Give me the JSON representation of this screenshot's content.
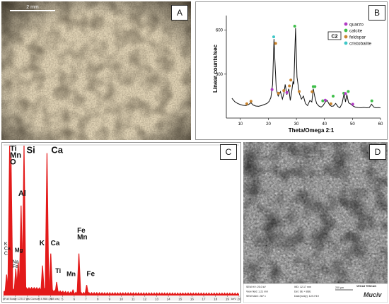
{
  "panels": {
    "a": {
      "letter": "A",
      "scale_bar_label": "2 mm"
    },
    "b": {
      "letter": "B"
    },
    "c": {
      "letter": "C"
    },
    "d": {
      "letter": "D"
    }
  },
  "xrd_chart": {
    "type": "line",
    "sample_label": "C2",
    "xlabel": "Theta/Omega 2:1",
    "ylabel": "Linear counts/sec",
    "xlim": [
      5,
      60
    ],
    "ylim": [
      0,
      700
    ],
    "x_ticks": [
      10,
      20,
      30,
      40,
      50,
      60
    ],
    "y_ticks": [
      300,
      600
    ],
    "legend_position": "top-right",
    "legend": [
      {
        "name": "quarzo",
        "color": "#b13bc4"
      },
      {
        "name": "calcite",
        "color": "#3fbf4a"
      },
      {
        "name": "feldspar",
        "color": "#c9842f"
      },
      {
        "name": "cristobalite",
        "color": "#3fc7c7"
      }
    ],
    "pattern_x": [
      7,
      8,
      9,
      10,
      11,
      12,
      13,
      13.8,
      14.5,
      15.5,
      16.5,
      17.5,
      18.5,
      19.5,
      20.3,
      20.9,
      21.5,
      21.8,
      22.0,
      22.3,
      22.8,
      23.5,
      24.3,
      25.0,
      25.6,
      26.0,
      26.6,
      27.3,
      27.8,
      28.3,
      28.8,
      29.1,
      29.4,
      29.7,
      30.2,
      31.0,
      31.8,
      32.5,
      33.2,
      34.0,
      34.8,
      35.5,
      36.0,
      36.5,
      37.2,
      38.0,
      38.8,
      39.5,
      40.3,
      41.0,
      41.8,
      42.5,
      43.2,
      44.0,
      44.8,
      45.5,
      46.3,
      47.0,
      47.5,
      48.0,
      48.6,
      49.4,
      50.2,
      51.0,
      52.0,
      53.0,
      54.0,
      55.0,
      56.0,
      56.8,
      57.6,
      58.4,
      59.2,
      60
    ],
    "pattern_y": [
      135,
      112,
      100,
      92,
      87,
      85,
      93,
      105,
      90,
      82,
      80,
      85,
      92,
      100,
      115,
      140,
      230,
      420,
      540,
      400,
      200,
      150,
      180,
      130,
      175,
      230,
      160,
      200,
      120,
      180,
      250,
      230,
      430,
      615,
      280,
      170,
      130,
      150,
      100,
      85,
      120,
      110,
      200,
      150,
      100,
      82,
      75,
      85,
      110,
      120,
      90,
      80,
      82,
      100,
      78,
      70,
      100,
      170,
      110,
      160,
      105,
      95,
      82,
      75,
      72,
      70,
      73,
      70,
      72,
      95,
      75,
      70,
      72,
      70
    ],
    "markers": [
      {
        "x": 12.3,
        "y": 88,
        "phase": "feldspar"
      },
      {
        "x": 13.8,
        "y": 105,
        "phase": "feldspar"
      },
      {
        "x": 21.3,
        "y": 185,
        "phase": "quarzo"
      },
      {
        "x": 21.9,
        "y": 545,
        "phase": "cristobalite"
      },
      {
        "x": 22.6,
        "y": 500,
        "phase": "feldspar"
      },
      {
        "x": 23.6,
        "y": 160,
        "phase": "feldspar"
      },
      {
        "x": 25.5,
        "y": 178,
        "phase": "feldspar"
      },
      {
        "x": 26.6,
        "y": 165,
        "phase": "quarzo"
      },
      {
        "x": 27.5,
        "y": 210,
        "phase": "feldspar"
      },
      {
        "x": 28.0,
        "y": 250,
        "phase": "feldspar"
      },
      {
        "x": 29.4,
        "y": 618,
        "phase": "calcite"
      },
      {
        "x": 31.0,
        "y": 172,
        "phase": "feldspar"
      },
      {
        "x": 35.6,
        "y": 170,
        "phase": "feldspar"
      },
      {
        "x": 36.0,
        "y": 205,
        "phase": "calcite"
      },
      {
        "x": 36.6,
        "y": 205,
        "phase": "calcite"
      },
      {
        "x": 39.4,
        "y": 108,
        "phase": "calcite"
      },
      {
        "x": 40.3,
        "y": 112,
        "phase": "quarzo"
      },
      {
        "x": 42.3,
        "y": 88,
        "phase": "feldspar"
      },
      {
        "x": 43.1,
        "y": 140,
        "phase": "calcite"
      },
      {
        "x": 46.9,
        "y": 160,
        "phase": "calcite"
      },
      {
        "x": 47.5,
        "y": 158,
        "phase": "quarzo"
      },
      {
        "x": 48.5,
        "y": 172,
        "phase": "calcite"
      },
      {
        "x": 50.1,
        "y": 85,
        "phase": "quarzo"
      },
      {
        "x": 56.9,
        "y": 108,
        "phase": "calcite"
      }
    ]
  },
  "eds_chart": {
    "type": "bar",
    "footer_text": "Full Scale 17217 cts Cursor: 4.966 (788 cts)",
    "xlim": [
      0,
      20
    ],
    "x_tick_labels": [
      "0",
      "1",
      "2",
      "3",
      "4",
      "5",
      "6",
      "7",
      "8",
      "9",
      "10",
      "11",
      "12",
      "13",
      "14",
      "15",
      "16",
      "17",
      "18",
      "19",
      "20"
    ],
    "axis_unit": "keV",
    "peaks": [
      {
        "x": 0.26,
        "h": 0.14
      },
      {
        "x": 0.39,
        "h": 0.1
      },
      {
        "x": 0.52,
        "h": 1.0
      },
      {
        "x": 0.63,
        "h": 0.95
      },
      {
        "x": 1.04,
        "h": 0.18
      },
      {
        "x": 1.25,
        "h": 0.22
      },
      {
        "x": 1.49,
        "h": 0.6
      },
      {
        "x": 1.74,
        "h": 1.0
      },
      {
        "x": 3.31,
        "h": 0.2
      },
      {
        "x": 3.69,
        "h": 0.95
      },
      {
        "x": 4.01,
        "h": 0.28
      },
      {
        "x": 4.51,
        "h": 0.09
      },
      {
        "x": 5.9,
        "h": 0.04
      },
      {
        "x": 6.4,
        "h": 0.28
      },
      {
        "x": 7.06,
        "h": 0.07
      }
    ],
    "labels": [
      {
        "text": "Ti",
        "x": 0.55,
        "y": 0.965,
        "size": 11,
        "bold": true
      },
      {
        "text": "Mn",
        "x": 0.55,
        "y": 0.92,
        "size": 11,
        "bold": true
      },
      {
        "text": "O",
        "x": 0.55,
        "y": 0.875,
        "size": 11,
        "bold": true
      },
      {
        "text": "Si",
        "x": 1.95,
        "y": 0.95,
        "size": 13,
        "bold": true
      },
      {
        "text": "Ca",
        "x": 4.05,
        "y": 0.95,
        "size": 13,
        "bold": true
      },
      {
        "text": "Al",
        "x": 1.25,
        "y": 0.665,
        "size": 11,
        "bold": true
      },
      {
        "text": "K",
        "x": 0.05,
        "y": 0.335,
        "size": 7,
        "bold": false
      },
      {
        "text": "Ca",
        "x": 0.05,
        "y": 0.305,
        "size": 7,
        "bold": false
      },
      {
        "text": "C",
        "x": 0.05,
        "y": 0.272,
        "size": 7,
        "bold": false
      },
      {
        "text": "Mg",
        "x": 0.95,
        "y": 0.29,
        "size": 8,
        "bold": true
      },
      {
        "text": "Na",
        "x": 0.75,
        "y": 0.215,
        "size": 7,
        "bold": false
      },
      {
        "text": "Fe",
        "x": 0.75,
        "y": 0.185,
        "size": 7,
        "bold": false
      },
      {
        "text": "K",
        "x": 3.05,
        "y": 0.335,
        "size": 10,
        "bold": true
      },
      {
        "text": "Ca",
        "x": 4.0,
        "y": 0.335,
        "size": 10,
        "bold": true
      },
      {
        "text": "Ti",
        "x": 4.4,
        "y": 0.15,
        "size": 9,
        "bold": true
      },
      {
        "text": "Mn",
        "x": 5.35,
        "y": 0.13,
        "size": 9,
        "bold": true
      },
      {
        "text": "Fe",
        "x": 6.25,
        "y": 0.42,
        "size": 10,
        "bold": true
      },
      {
        "text": "Mn",
        "x": 6.25,
        "y": 0.375,
        "size": 10,
        "bold": true
      },
      {
        "text": "Fe",
        "x": 7.05,
        "y": 0.13,
        "size": 10,
        "bold": true
      }
    ]
  },
  "sem_info": {
    "col1": [
      "SEM HV: 25.0 kV",
      "View field: 1.21 mm",
      "SEM MAG: 287 x"
    ],
    "col2": [
      "WD: 12.17 mm",
      "Det: SE + BSE",
      "Date(m/d/y): 12/17/19"
    ],
    "scale_label": "200 μm",
    "instrument": "VEGA3 TESCAN",
    "logo": "Muciv"
  }
}
